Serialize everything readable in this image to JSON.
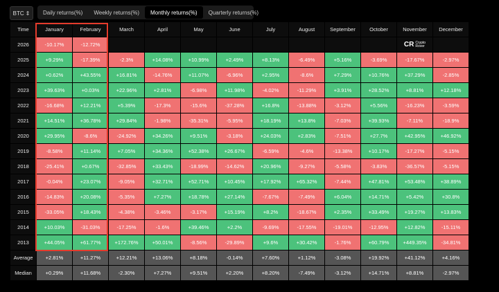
{
  "asset_selector": {
    "label": "BTC",
    "icon": "chevron-updown-icon"
  },
  "tabs": [
    {
      "label": "Daily returns(%)",
      "active": false
    },
    {
      "label": "Weekly returns(%)",
      "active": false
    },
    {
      "label": "Monthly returns(%)",
      "active": true
    },
    {
      "label": "Quarterly returns(%)",
      "active": false
    }
  ],
  "table": {
    "header_time": "Time",
    "months": [
      "January",
      "February",
      "March",
      "April",
      "May",
      "June",
      "July",
      "August",
      "September",
      "October",
      "November",
      "December"
    ],
    "rows": [
      {
        "year": "2026",
        "values": [
          "-10.17%",
          "-12.72%",
          "",
          "",
          "",
          "",
          "",
          "",
          "",
          "",
          "",
          ""
        ]
      },
      {
        "year": "2025",
        "values": [
          "+9.29%",
          "-17.39%",
          "-2.3%",
          "+14.08%",
          "+10.99%",
          "+2.49%",
          "+8.13%",
          "-6.49%",
          "+5.16%",
          "-3.69%",
          "-17.67%",
          "-2.97%"
        ]
      },
      {
        "year": "2024",
        "values": [
          "+0.62%",
          "+43.55%",
          "+16.81%",
          "-14.76%",
          "+11.07%",
          "-6.96%",
          "+2.95%",
          "-8.6%",
          "+7.29%",
          "+10.76%",
          "+37.29%",
          "-2.85%"
        ]
      },
      {
        "year": "2023",
        "values": [
          "+39.63%",
          "+0.03%",
          "+22.96%",
          "+2.81%",
          "-6.98%",
          "+11.98%",
          "-4.02%",
          "-11.29%",
          "+3.91%",
          "+28.52%",
          "+8.81%",
          "+12.18%"
        ]
      },
      {
        "year": "2022",
        "values": [
          "-16.68%",
          "+12.21%",
          "+5.39%",
          "-17.3%",
          "-15.6%",
          "-37.28%",
          "+16.8%",
          "-13.88%",
          "-3.12%",
          "+5.56%",
          "-16.23%",
          "-3.59%"
        ]
      },
      {
        "year": "2021",
        "values": [
          "+14.51%",
          "+36.78%",
          "+29.84%",
          "-1.98%",
          "-35.31%",
          "-5.95%",
          "+18.19%",
          "+13.8%",
          "-7.03%",
          "+39.93%",
          "-7.11%",
          "-18.9%"
        ]
      },
      {
        "year": "2020",
        "values": [
          "+29.95%",
          "-8.6%",
          "-24.92%",
          "+34.26%",
          "+9.51%",
          "-3.18%",
          "+24.03%",
          "+2.83%",
          "-7.51%",
          "+27.7%",
          "+42.95%",
          "+46.92%"
        ]
      },
      {
        "year": "2019",
        "values": [
          "-8.58%",
          "+11.14%",
          "+7.05%",
          "+34.36%",
          "+52.38%",
          "+26.67%",
          "-6.59%",
          "-4.6%",
          "-13.38%",
          "+10.17%",
          "-17.27%",
          "-5.15%"
        ]
      },
      {
        "year": "2018",
        "values": [
          "-25.41%",
          "+0.67%",
          "-32.85%",
          "+33.43%",
          "-18.99%",
          "-14.62%",
          "+20.96%",
          "-9.27%",
          "-5.58%",
          "-3.83%",
          "-36.57%",
          "-5.15%"
        ]
      },
      {
        "year": "2017",
        "values": [
          "-0.04%",
          "+23.07%",
          "-9.05%",
          "+32.71%",
          "+52.71%",
          "+10.45%",
          "+17.92%",
          "+65.32%",
          "-7.44%",
          "+47.81%",
          "+53.48%",
          "+38.89%"
        ]
      },
      {
        "year": "2016",
        "values": [
          "-14.83%",
          "+20.08%",
          "-5.35%",
          "+7.27%",
          "+18.78%",
          "+27.14%",
          "-7.67%",
          "-7.49%",
          "+6.04%",
          "+14.71%",
          "+5.42%",
          "+30.8%"
        ]
      },
      {
        "year": "2015",
        "values": [
          "-33.05%",
          "+18.43%",
          "-4.38%",
          "-3.46%",
          "-3.17%",
          "+15.19%",
          "+8.2%",
          "-18.67%",
          "+2.35%",
          "+33.49%",
          "+19.27%",
          "+13.83%"
        ]
      },
      {
        "year": "2014",
        "values": [
          "+10.03%",
          "-31.03%",
          "-17.25%",
          "-1.6%",
          "+39.46%",
          "+2.2%",
          "-9.69%",
          "-17.55%",
          "-19.01%",
          "-12.95%",
          "+12.82%",
          "-15.11%"
        ]
      },
      {
        "year": "2013",
        "values": [
          "+44.05%",
          "+61.77%",
          "+172.76%",
          "+50.01%",
          "-8.56%",
          "-29.89%",
          "+9.6%",
          "+30.42%",
          "-1.76%",
          "+60.79%",
          "+449.35%",
          "-34.81%"
        ]
      }
    ],
    "average": {
      "label": "Average",
      "values": [
        "+2.81%",
        "+11.27%",
        "+12.21%",
        "+13.06%",
        "+8.18%",
        "-0.14%",
        "+7.60%",
        "+1.12%",
        "-3.08%",
        "+19.92%",
        "+41.12%",
        "+4.16%"
      ]
    },
    "median": {
      "label": "Median",
      "values": [
        "+0.29%",
        "+11.68%",
        "-2.30%",
        "+7.27%",
        "+9.51%",
        "+2.20%",
        "+8.20%",
        "-7.49%",
        "-3.12%",
        "+14.71%",
        "+8.81%",
        "-2.97%"
      ]
    }
  },
  "logo": {
    "mark": "CR",
    "line1": "Crypto",
    "line2": "Rover"
  },
  "colors": {
    "positive": "#4cc27c",
    "negative": "#f07272",
    "stat": "#555555",
    "highlight": "#e53b2c"
  }
}
